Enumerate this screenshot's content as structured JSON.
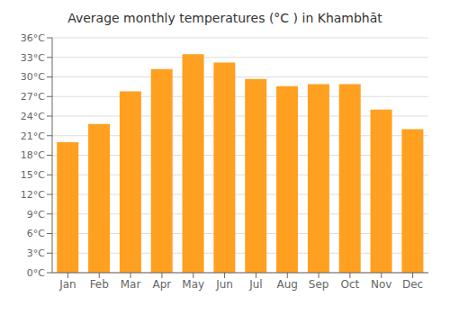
{
  "chart_data": {
    "type": "bar",
    "title": "Average monthly temperatures (°C ) in Khambhāt",
    "categories": [
      "Jan",
      "Feb",
      "Mar",
      "Apr",
      "May",
      "Jun",
      "Jul",
      "Aug",
      "Sep",
      "Oct",
      "Nov",
      "Dec"
    ],
    "values": [
      20.0,
      22.8,
      27.8,
      31.2,
      33.5,
      32.2,
      29.7,
      28.6,
      28.9,
      28.9,
      25.0,
      22.0
    ],
    "color": "#FFA020",
    "ylim": [
      0,
      36
    ],
    "yticks": [
      {
        "value": 0,
        "label": "0°C"
      },
      {
        "value": 3,
        "label": "3°C"
      },
      {
        "value": 6,
        "label": "6°C"
      },
      {
        "value": 9,
        "label": "9°C"
      },
      {
        "value": 12,
        "label": "12°C"
      },
      {
        "value": 15,
        "label": "15°C"
      },
      {
        "value": 18,
        "label": "18°C"
      },
      {
        "value": 21,
        "label": "21°C"
      },
      {
        "value": 24,
        "label": "24°C"
      },
      {
        "value": 27,
        "label": "27°C"
      },
      {
        "value": 30,
        "label": "30°C"
      },
      {
        "value": 33,
        "label": "33°C"
      },
      {
        "value": 36,
        "label": "36°C"
      }
    ],
    "grid": true
  }
}
